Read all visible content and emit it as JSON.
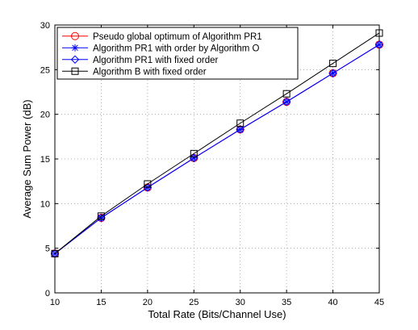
{
  "chart_data": {
    "type": "line",
    "xlabel": "Total Rate (Bits/Channel Use)",
    "ylabel": "Average Sum Power (dB)",
    "xlim": [
      10,
      45
    ],
    "ylim": [
      0,
      30
    ],
    "xticks": [
      10,
      15,
      20,
      25,
      30,
      35,
      40,
      45
    ],
    "yticks": [
      0,
      5,
      10,
      15,
      20,
      25,
      30
    ],
    "grid": true,
    "legend_position": "top-left",
    "x": [
      10,
      15,
      20,
      25,
      30,
      35,
      40,
      45
    ],
    "series": [
      {
        "name": "Pseudo global optimum of Algorithm PR1",
        "color": "#ff0000",
        "marker": "circle",
        "values": [
          4.4,
          8.4,
          11.8,
          15.1,
          18.3,
          21.4,
          24.6,
          27.8
        ]
      },
      {
        "name": "Algorithm PR1 with order by Algorithm O",
        "color": "#0000ff",
        "marker": "asterisk",
        "values": [
          4.4,
          8.4,
          11.8,
          15.1,
          18.3,
          21.4,
          24.6,
          27.8
        ]
      },
      {
        "name": "Algorithm PR1 with fixed order",
        "color": "#0000ff",
        "marker": "diamond",
        "values": [
          4.4,
          8.4,
          11.8,
          15.1,
          18.3,
          21.4,
          24.6,
          27.8
        ]
      },
      {
        "name": "Algorithm B with fixed order",
        "color": "#000000",
        "marker": "square",
        "values": [
          4.4,
          8.6,
          12.2,
          15.6,
          19.0,
          22.3,
          25.7,
          29.1
        ]
      }
    ]
  }
}
